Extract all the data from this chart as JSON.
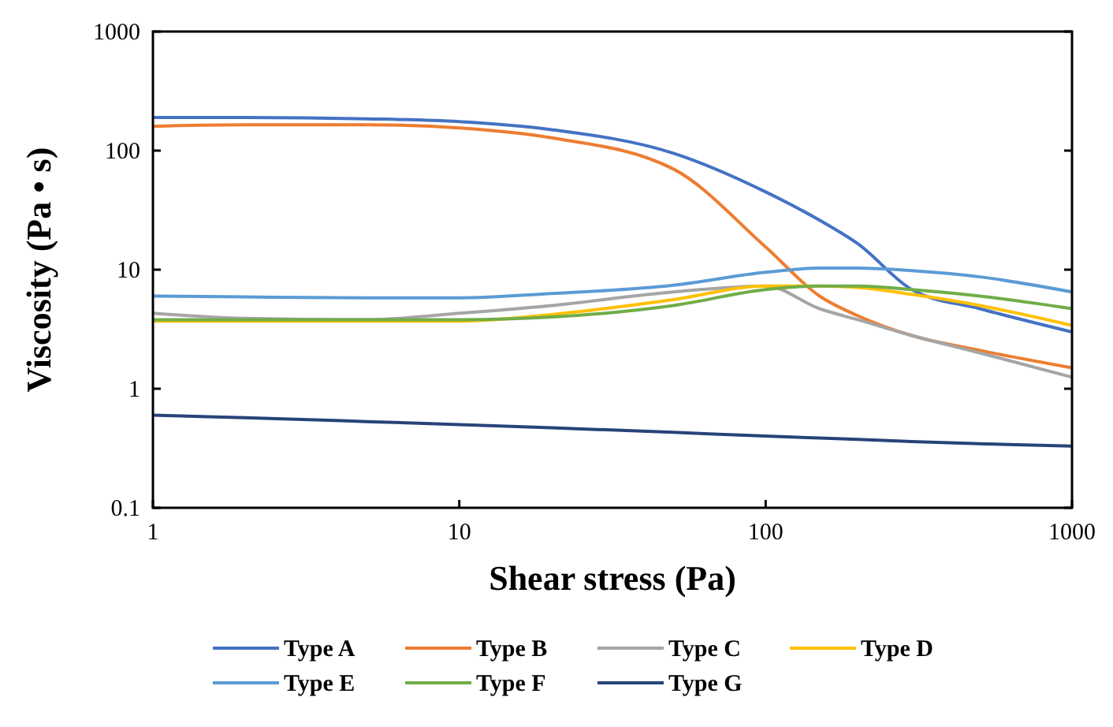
{
  "chart_data": {
    "type": "line",
    "xlabel": "Shear stress (Pa)",
    "ylabel": "Viscosity (Pa • s)",
    "log": "xy",
    "xlim": [
      1,
      1000
    ],
    "ylim": [
      0.1,
      1000
    ],
    "xticks": [
      1,
      10,
      100,
      1000
    ],
    "yticks": [
      0.1,
      1,
      10,
      100,
      1000
    ],
    "legend": "bottom",
    "grid": false,
    "x": [
      1,
      2,
      5,
      10,
      20,
      50,
      100,
      150,
      200,
      300,
      500,
      1000
    ],
    "series": [
      {
        "name": "Type A",
        "color": "#4472c4",
        "values": [
          190,
          190,
          185,
          175,
          150,
          95,
          45,
          26,
          16.5,
          6.8,
          4.7,
          3
        ]
      },
      {
        "name": "Type B",
        "color": "#ed7d31",
        "values": [
          160,
          165,
          165,
          155,
          128,
          70,
          15.5,
          6,
          4.1,
          2.8,
          2.1,
          1.5
        ]
      },
      {
        "name": "Type C",
        "color": "#a5a5a5",
        "values": [
          4.3,
          3.9,
          3.8,
          4.3,
          5,
          6.5,
          7.3,
          4.7,
          3.8,
          2.8,
          2,
          1.25
        ]
      },
      {
        "name": "Type D",
        "color": "#ffc000",
        "values": [
          3.7,
          3.7,
          3.7,
          3.7,
          4.2,
          5.6,
          7.3,
          7.3,
          7.1,
          6.2,
          5,
          3.4
        ]
      },
      {
        "name": "Type E",
        "color": "#5b9bd5",
        "values": [
          6,
          5.9,
          5.8,
          5.8,
          6.3,
          7.4,
          9.5,
          10.3,
          10.3,
          9.8,
          8.7,
          6.5
        ]
      },
      {
        "name": "Type F",
        "color": "#70ad47",
        "values": [
          3.8,
          3.8,
          3.8,
          3.8,
          4,
          5,
          6.8,
          7.3,
          7.3,
          6.8,
          6,
          4.7
        ]
      },
      {
        "name": "Type G",
        "color": "#264478",
        "values": [
          0.6,
          0.57,
          0.53,
          0.5,
          0.47,
          0.43,
          0.4,
          0.385,
          0.375,
          0.36,
          0.345,
          0.33
        ]
      }
    ]
  }
}
